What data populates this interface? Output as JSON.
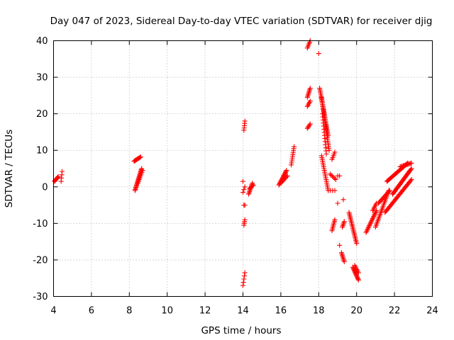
{
  "chart_data": {
    "type": "scatter",
    "title": "Day 047 of 2023, Sidereal Day-to-day VTEC variation (SDTVAR) for receiver djig",
    "xlabel": "GPS time / hours",
    "ylabel": "SDTVAR / TECUs",
    "xlim": [
      4,
      24
    ],
    "ylim": [
      -30,
      40
    ],
    "xticks": [
      4,
      6,
      8,
      10,
      12,
      14,
      16,
      18,
      20,
      22,
      24
    ],
    "yticks": [
      -30,
      -20,
      -10,
      0,
      10,
      20,
      30,
      40
    ],
    "grid": true,
    "marker": "+",
    "color": "#ff0000",
    "segments": [
      {
        "x0": 4.05,
        "y0": 1.5,
        "x1": 4.25,
        "y1": 2.8,
        "n": 8
      },
      {
        "x0": 4.4,
        "y0": 1.5,
        "x1": 4.45,
        "y1": 4.2,
        "n": 4
      },
      {
        "x0": 8.25,
        "y0": 7.0,
        "x1": 8.6,
        "y1": 8.2,
        "n": 10
      },
      {
        "x0": 8.3,
        "y0": -1.0,
        "x1": 8.65,
        "y1": 5.0,
        "n": 22
      },
      {
        "x0": 8.45,
        "y0": 1.0,
        "x1": 8.7,
        "y1": 4.5,
        "n": 8
      },
      {
        "x0": 14.05,
        "y0": 15.5,
        "x1": 14.1,
        "y1": 18.0,
        "n": 5
      },
      {
        "x0": 14.0,
        "y0": 1.5,
        "x1": 14.05,
        "y1": 2.0,
        "n": 1
      },
      {
        "x0": 14.0,
        "y0": -1.5,
        "x1": 14.1,
        "y1": 0.0,
        "n": 3
      },
      {
        "x0": 14.05,
        "y0": -5.0,
        "x1": 14.1,
        "y1": -5.0,
        "n": 2
      },
      {
        "x0": 14.05,
        "y0": -10.5,
        "x1": 14.1,
        "y1": -9.0,
        "n": 4
      },
      {
        "x0": 14.0,
        "y0": -27.0,
        "x1": 14.1,
        "y1": -23.5,
        "n": 5
      },
      {
        "x0": 14.3,
        "y0": -2.0,
        "x1": 14.5,
        "y1": 1.0,
        "n": 10
      },
      {
        "x0": 14.35,
        "y0": -0.5,
        "x1": 14.55,
        "y1": 0.5,
        "n": 5
      },
      {
        "x0": 15.9,
        "y0": 0.5,
        "x1": 16.3,
        "y1": 4.5,
        "n": 16
      },
      {
        "x0": 16.0,
        "y0": 1.0,
        "x1": 16.35,
        "y1": 3.0,
        "n": 8
      },
      {
        "x0": 16.55,
        "y0": 6.0,
        "x1": 16.7,
        "y1": 11.0,
        "n": 10
      },
      {
        "x0": 17.4,
        "y0": 38.0,
        "x1": 17.55,
        "y1": 40.0,
        "n": 6
      },
      {
        "x0": 17.4,
        "y0": 24.5,
        "x1": 17.55,
        "y1": 27.0,
        "n": 8
      },
      {
        "x0": 17.4,
        "y0": 22.0,
        "x1": 17.55,
        "y1": 23.5,
        "n": 5
      },
      {
        "x0": 17.4,
        "y0": 16.0,
        "x1": 17.55,
        "y1": 17.2,
        "n": 5
      },
      {
        "x0": 18.0,
        "y0": 36.5,
        "x1": 18.0,
        "y1": 36.5,
        "n": 1
      },
      {
        "x0": 18.05,
        "y0": 27.0,
        "x1": 18.5,
        "y1": 14.0,
        "n": 30
      },
      {
        "x0": 18.15,
        "y0": 24.5,
        "x1": 18.55,
        "y1": 10.0,
        "n": 30
      },
      {
        "x0": 18.2,
        "y0": 20.0,
        "x1": 18.4,
        "y1": 9.0,
        "n": 14
      },
      {
        "x0": 18.15,
        "y0": 8.5,
        "x1": 18.5,
        "y1": -1.0,
        "n": 20
      },
      {
        "x0": 18.6,
        "y0": 3.5,
        "x1": 18.9,
        "y1": 2.0,
        "n": 6
      },
      {
        "x0": 18.5,
        "y0": -1.0,
        "x1": 18.85,
        "y1": -1.0,
        "n": 4
      },
      {
        "x0": 18.7,
        "y0": 7.5,
        "x1": 18.85,
        "y1": 9.5,
        "n": 5
      },
      {
        "x0": 19.0,
        "y0": 3.0,
        "x1": 19.1,
        "y1": 3.0,
        "n": 2
      },
      {
        "x0": 19.0,
        "y0": -4.5,
        "x1": 19.0,
        "y1": -4.5,
        "n": 1
      },
      {
        "x0": 19.3,
        "y0": -3.5,
        "x1": 19.35,
        "y1": -3.5,
        "n": 1
      },
      {
        "x0": 18.7,
        "y0": -12.0,
        "x1": 18.85,
        "y1": -9.0,
        "n": 8
      },
      {
        "x0": 19.25,
        "y0": -11.0,
        "x1": 19.35,
        "y1": -9.5,
        "n": 5
      },
      {
        "x0": 19.1,
        "y0": -16.0,
        "x1": 19.15,
        "y1": -16.0,
        "n": 1
      },
      {
        "x0": 19.2,
        "y0": -18.0,
        "x1": 19.35,
        "y1": -20.5,
        "n": 8
      },
      {
        "x0": 19.6,
        "y0": -7.0,
        "x1": 20.0,
        "y1": -15.5,
        "n": 22
      },
      {
        "x0": 19.8,
        "y0": -22.0,
        "x1": 20.1,
        "y1": -25.5,
        "n": 14
      },
      {
        "x0": 19.9,
        "y0": -21.5,
        "x1": 20.1,
        "y1": -23.5,
        "n": 6
      },
      {
        "x0": 20.5,
        "y0": -12.5,
        "x1": 21.05,
        "y1": -6.5,
        "n": 20
      },
      {
        "x0": 20.85,
        "y0": -6.5,
        "x1": 21.05,
        "y1": -4.5,
        "n": 6
      },
      {
        "x0": 21.0,
        "y0": -11.0,
        "x1": 21.7,
        "y1": -1.0,
        "n": 24
      },
      {
        "x0": 21.15,
        "y0": -4.5,
        "x1": 21.75,
        "y1": -1.0,
        "n": 14
      },
      {
        "x0": 21.6,
        "y0": 1.5,
        "x1": 22.7,
        "y1": 6.5,
        "n": 30
      },
      {
        "x0": 21.9,
        "y0": -2.0,
        "x1": 22.9,
        "y1": 5.0,
        "n": 30
      },
      {
        "x0": 21.5,
        "y0": -7.0,
        "x1": 22.9,
        "y1": 2.0,
        "n": 34
      },
      {
        "x0": 22.3,
        "y0": 5.5,
        "x1": 22.9,
        "y1": 6.5,
        "n": 12
      }
    ]
  }
}
